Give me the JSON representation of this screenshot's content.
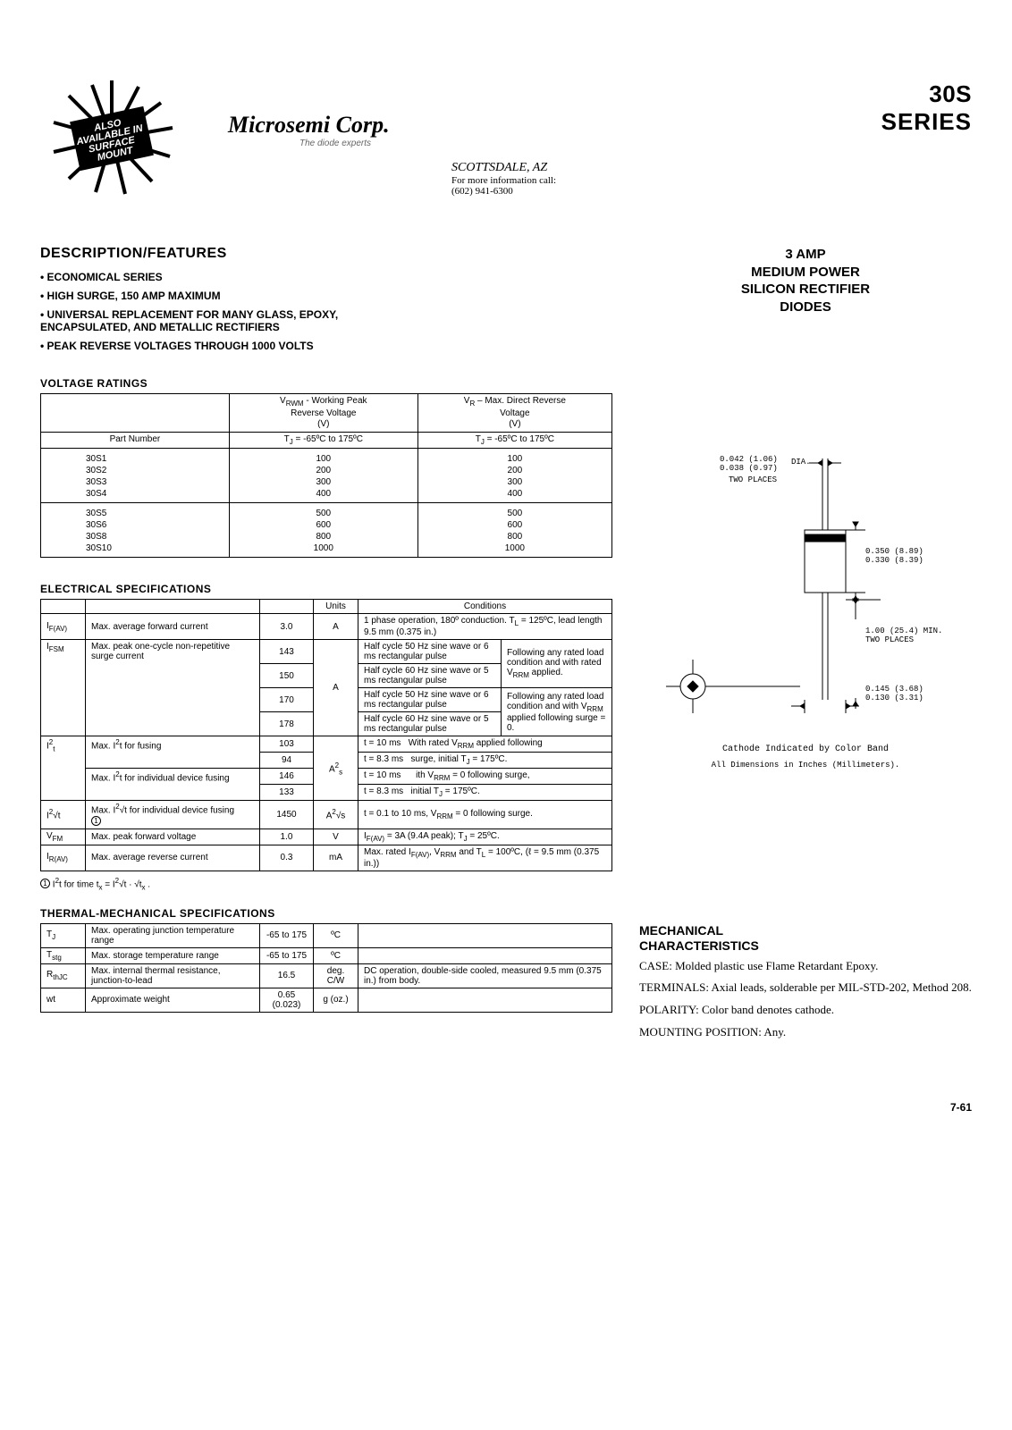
{
  "header": {
    "company_name": "Microsemi Corp.",
    "company_tagline": "The diode experts",
    "contact_city": "SCOTTSDALE, AZ",
    "contact_info": "For more information call:",
    "contact_phone": "(602) 941-6300",
    "series_line1": "30S",
    "series_line2": "SERIES",
    "badge_text": "ALSO AVAILABLE IN SURFACE MOUNT"
  },
  "product_title": {
    "l1": "3 AMP",
    "l2": "MEDIUM POWER",
    "l3": "SILICON RECTIFIER",
    "l4": "DIODES"
  },
  "features_heading": "DESCRIPTION/FEATURES",
  "features": [
    "ECONOMICAL SERIES",
    "HIGH SURGE, 150 AMP MAXIMUM",
    "UNIVERSAL REPLACEMENT FOR MANY GLASS, EPOXY, ENCAPSULATED, AND METALLIC RECTIFIERS",
    "PEAK REVERSE VOLTAGES THROUGH 1000 VOLTS"
  ],
  "voltage_ratings": {
    "heading": "VOLTAGE RATINGS",
    "col_part": "Part Number",
    "col_vrwm_l1": "V",
    "col_vrwm_sub": "RWM",
    "col_vrwm_l1b": " - Working Peak",
    "col_vrwm_l2": "Reverse Voltage",
    "col_vrwm_l3": "(V)",
    "col_vr_l1": "V",
    "col_vr_sub": "R",
    "col_vr_l1b": " – Max. Direct Reverse",
    "col_vr_l2": "Voltage",
    "col_vr_l3": "(V)",
    "tj_range": "T",
    "tj_sub": "J",
    "tj_val": " = -65ºC to 175ºC",
    "group1": [
      {
        "pn": "30S1",
        "vrwm": "100",
        "vr": "100"
      },
      {
        "pn": "30S2",
        "vrwm": "200",
        "vr": "200"
      },
      {
        "pn": "30S3",
        "vrwm": "300",
        "vr": "300"
      },
      {
        "pn": "30S4",
        "vrwm": "400",
        "vr": "400"
      }
    ],
    "group2": [
      {
        "pn": "30S5",
        "vrwm": "500",
        "vr": "500"
      },
      {
        "pn": "30S6",
        "vrwm": "600",
        "vr": "600"
      },
      {
        "pn": "30S8",
        "vrwm": "800",
        "vr": "800"
      },
      {
        "pn": "30S10",
        "vrwm": "1000",
        "vr": "1000"
      }
    ]
  },
  "electrical": {
    "heading": "ELECTRICAL SPECIFICATIONS",
    "hdr_units": "Units",
    "hdr_conditions": "Conditions",
    "rows": {
      "ifav": {
        "sym1": "I",
        "sub": "F(AV)",
        "desc": "Max. average forward current",
        "val": "3.0",
        "unit": "A",
        "cond": "1 phase operation, 180º conduction.  T",
        "condsub": "L",
        "cond2": " = 125ºC, lead length 9.5 mm (0.375 in.)"
      },
      "ifsm": {
        "sym1": "I",
        "sub": "FSM",
        "desc": "Max. peak one-cycle non-repetitive surge current",
        "unit": "A",
        "v1": "143",
        "c1": "Half cycle 50 Hz sine wave or 6 ms rectangular pulse",
        "v2": "150",
        "c2": "Half cycle 60 Hz sine wave or 5 ms rectangular pulse",
        "v3": "170",
        "c3": "Half cycle 50 Hz sine wave or 6 ms rectangular pulse",
        "v4": "178",
        "c4": "Half cycle 60 Hz sine wave or 5 ms rectangular pulse",
        "side1": "Following any rated load condition and with rated V",
        "side1sub": "RRM",
        "side1b": " applied.",
        "side2": "Following any rated load condition and with V",
        "side2sub": "RRM",
        "side2b": " applied following surge = 0."
      },
      "i2t": {
        "sym": "I",
        "symsup": "2",
        "symsub": "t",
        "d1": "Max. I",
        "d1sup": "2",
        "d1b": "t for fusing",
        "v1": "103",
        "v2": "94",
        "d2": "Max. I",
        "d2sup": "2",
        "d2b": "t for individual device fusing",
        "v3": "146",
        "v4": "133",
        "unit": "A",
        "unitsup": "2",
        "unitsub": "s",
        "c1a": "t = 10 ms",
        "c1b": "With rated V",
        "c1sub": "RRM",
        "c1c": " applied following",
        "c2a": "t = 8.3 ms",
        "c2b": "surge, initial T",
        "c2sub": "J",
        "c2c": " = 175ºC.",
        "c3a": "t = 10 ms",
        "c3b": "ith V",
        "c3sub": "RRM",
        "c3c": " = 0 following surge,",
        "c4a": "t = 8.3 ms",
        "c4b": "initial T",
        "c4sub": "J",
        "c4c": " = 175ºC."
      },
      "i2rt": {
        "sym": "I",
        "symsup": "2",
        "symrt": "√t",
        "desc1": "Max. I",
        "descsup": "2",
        "desc2": "√t for individual device fusing",
        "circ": "1",
        "val": "1450",
        "unit": "A",
        "unitsup": "2",
        "unitrt": "√s",
        "cond": "t = 0.1 to 10 ms, V",
        "condsub": "RRM",
        "cond2": " = 0 following surge."
      },
      "vfm": {
        "sym": "V",
        "sub": "FM",
        "desc": "Max. peak forward voltage",
        "val": "1.0",
        "unit": "V",
        "cond": "I",
        "condsub": "F(AV)",
        "cond2": " = 3A (9.4A peak); T",
        "condsub2": "J",
        "cond3": " = 25ºC."
      },
      "irav": {
        "sym": "I",
        "sub": "R(AV)",
        "desc": "Max. average reverse current",
        "val": "0.3",
        "unit": "mA",
        "cond": "Max. rated I",
        "condsub": "F(AV)",
        "cond2": ", V",
        "condsub2": "RRM",
        "cond3": " and T",
        "condsub3": "L",
        "cond4": " = 100ºC, (ℓ = 9.5 mm (0.375 in.))"
      }
    },
    "footnote_circ": "1",
    "footnote": " I",
    "footnote_sup": "2",
    "footnote2": "t for time t",
    "footnote_sub": "x",
    "footnote3": " = I",
    "footnote_sup2": "2",
    "footnote4": "√t · √t",
    "footnote_sub2": "x",
    "footnote5": " ."
  },
  "thermal": {
    "heading": "THERMAL-MECHANICAL SPECIFICATIONS",
    "rows": [
      {
        "sym": "T",
        "sub": "J",
        "desc": "Max. operating junction temperature range",
        "val": "-65 to 175",
        "unit": "ºC",
        "cond": ""
      },
      {
        "sym": "T",
        "sub": "stg",
        "desc": "Max. storage temperature range",
        "val": "-65 to 175",
        "unit": "ºC",
        "cond": ""
      },
      {
        "sym": "R",
        "sub": "thJC",
        "desc": "Max. internal thermal resistance, junction-to-lead",
        "val": "16.5",
        "unit": "deg. C/W",
        "cond": "DC operation, double-side cooled, measured 9.5 mm (0.375 in.) from body."
      },
      {
        "sym": "wt",
        "sub": "",
        "desc": "Approximate weight",
        "val": "0.65 (0.023)",
        "unit": "g (oz.)",
        "cond": ""
      }
    ]
  },
  "package": {
    "dim_dia": "0.042 (1.06)\n0.038 (0.97)",
    "dim_dia_suffix": "DIA.",
    "dim_dia_note": "TWO PLACES",
    "dim_body_h": "0.350 (8.89)\n0.330 (8.39)",
    "dim_lead": "1.00 (25.4) MIN.\nTWO PLACES",
    "dim_body_w": "0.145 (3.68)\n0.130 (3.31)",
    "note1": "Cathode Indicated by Color Band",
    "note2": "All Dimensions in Inches (Millimeters)."
  },
  "mechanical": {
    "heading1": "MECHANICAL",
    "heading2": "CHARACTERISTICS",
    "items": [
      {
        "label": "CASE:",
        "text": " Molded plastic use Flame Retardant Epoxy."
      },
      {
        "label": "TERMINALS:",
        "text": " Axial leads, solderable per MIL-STD-202, Method 208."
      },
      {
        "label": "POLARITY:",
        "text": " Color band denotes cathode."
      },
      {
        "label": "MOUNTING POSITION:",
        "text": " Any."
      }
    ]
  },
  "page_number": "7-61"
}
